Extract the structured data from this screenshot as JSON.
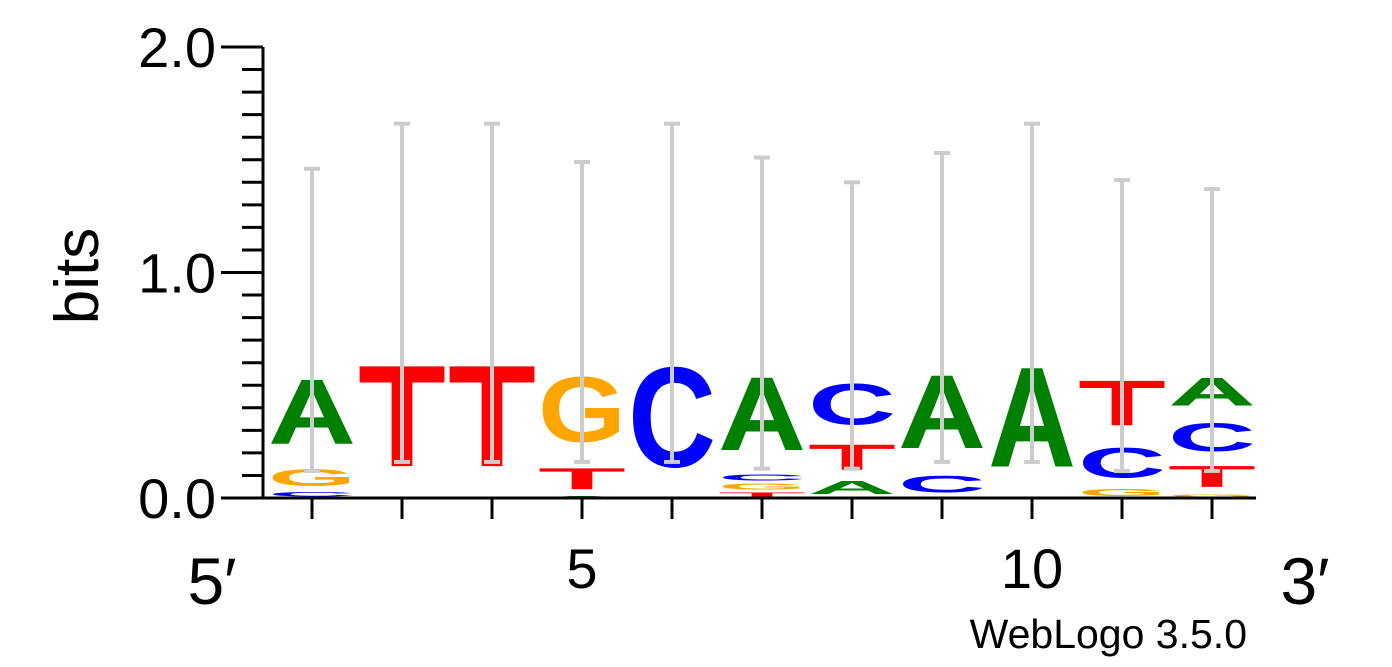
{
  "chart_data": {
    "type": "sequence-logo",
    "ylabel": "bits",
    "ylim": [
      0,
      2.0
    ],
    "y_ticks": [
      "0.0",
      "1.0",
      "2.0"
    ],
    "x_ticks": [
      {
        "position": 5,
        "label": "5"
      },
      {
        "position": 10,
        "label": "10"
      }
    ],
    "end_labels": {
      "left": "5′",
      "right": "3′"
    },
    "footer": "WebLogo 3.5.0",
    "colors": {
      "A": "#008000",
      "C": "#0000ff",
      "G": "#ffa500",
      "T": "#ff0000"
    },
    "error_bar_color": "#cccccc",
    "columns": [
      {
        "position": 2,
        "letters": [
          {
            "base": "C",
            "bits": 0.03
          },
          {
            "base": "G",
            "bits": 0.12
          },
          {
            "base": "A",
            "bits": 0.46
          }
        ],
        "error": [
          0.12,
          1.46
        ]
      },
      {
        "position": 3,
        "letters": [
          {
            "base": "T",
            "bits": 0.72
          }
        ],
        "error": [
          0.16,
          1.66
        ]
      },
      {
        "position": 4,
        "letters": [
          {
            "base": "T",
            "bits": 0.72
          }
        ],
        "error": [
          0.16,
          1.66
        ]
      },
      {
        "position": 5,
        "letters": [
          {
            "base": "A",
            "bits": 0.01
          },
          {
            "base": "T",
            "bits": 0.15
          },
          {
            "base": "G",
            "bits": 0.46
          }
        ],
        "error": [
          0.16,
          1.49
        ]
      },
      {
        "position": 6,
        "letters": [
          {
            "base": "C",
            "bits": 0.71
          }
        ],
        "error": [
          0.16,
          1.66
        ]
      },
      {
        "position": 7,
        "letters": [
          {
            "base": "T",
            "bits": 0.03
          },
          {
            "base": "G",
            "bits": 0.04
          },
          {
            "base": "C",
            "bits": 0.04
          },
          {
            "base": "A",
            "bits": 0.52
          }
        ],
        "error": [
          0.13,
          1.51
        ]
      },
      {
        "position": 8,
        "letters": [
          {
            "base": "A",
            "bits": 0.09
          },
          {
            "base": "T",
            "bits": 0.18
          },
          {
            "base": "C",
            "bits": 0.29
          }
        ],
        "error": [
          0.13,
          1.4
        ]
      },
      {
        "position": 9,
        "letters": [
          {
            "base": "C",
            "bits": 0.12
          },
          {
            "base": "A",
            "bits": 0.52
          }
        ],
        "error": [
          0.16,
          1.53
        ]
      },
      {
        "position": 10,
        "letters": [
          {
            "base": "A",
            "bits": 0.71
          }
        ],
        "error": [
          0.16,
          1.66
        ]
      },
      {
        "position": 11,
        "letters": [
          {
            "base": "G",
            "bits": 0.05
          },
          {
            "base": "C",
            "bits": 0.21
          },
          {
            "base": "T",
            "bits": 0.32
          }
        ],
        "error": [
          0.12,
          1.41
        ]
      },
      {
        "position": 12,
        "letters": [
          {
            "base": "G",
            "bits": 0.02
          },
          {
            "base": "T",
            "bits": 0.15
          },
          {
            "base": "C",
            "bits": 0.2
          },
          {
            "base": "A",
            "bits": 0.2
          }
        ],
        "error": [
          0.12,
          1.37
        ]
      }
    ]
  }
}
